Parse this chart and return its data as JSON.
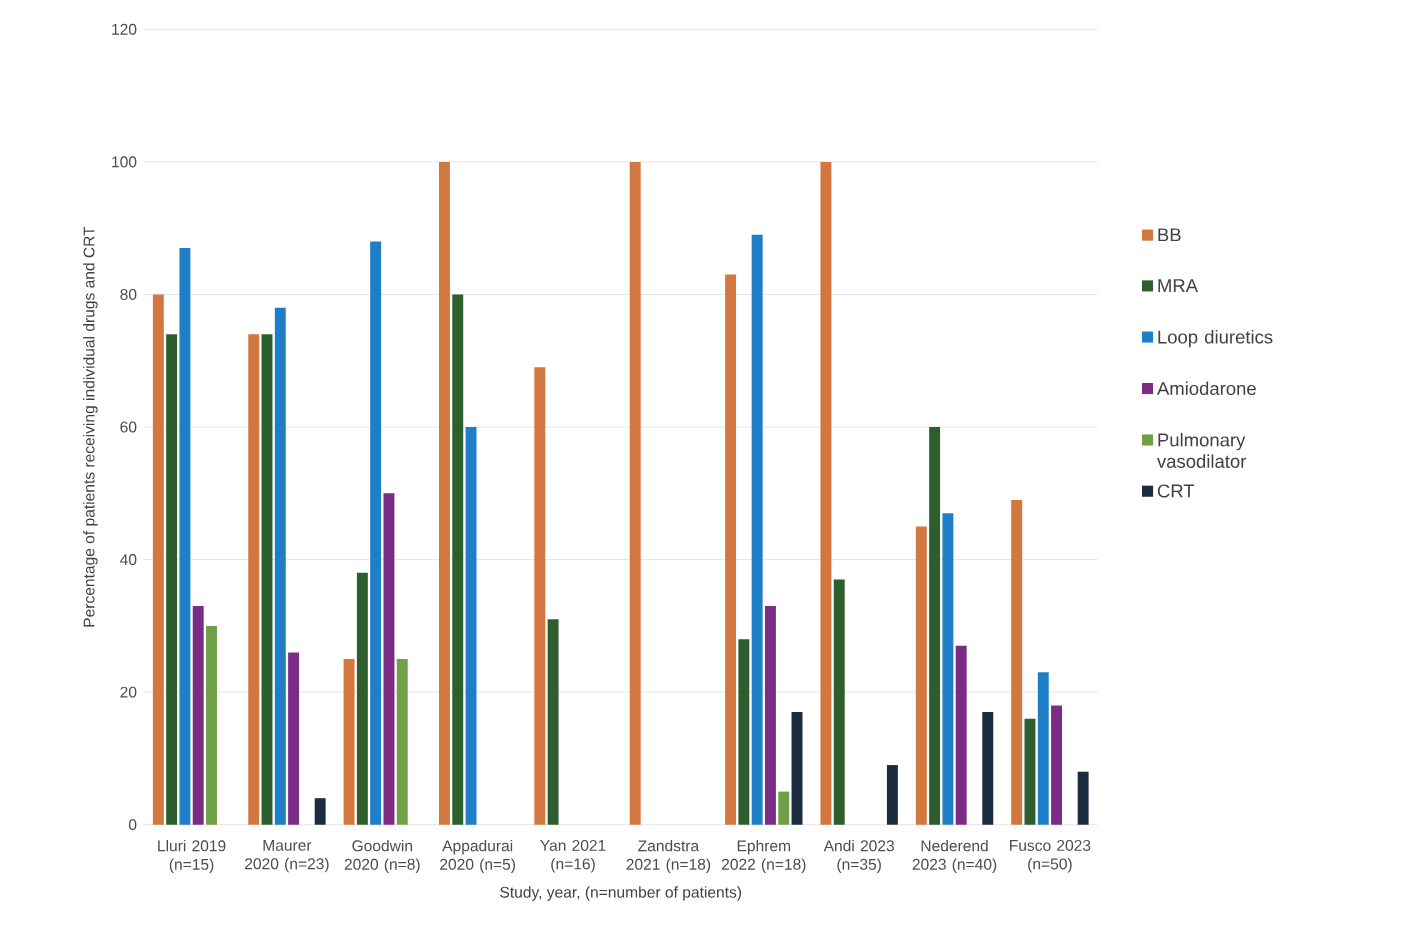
{
  "chart_data": {
    "type": "bar",
    "xlabel": "Study, year, (n=number of patients)",
    "ylabel": "Percentage of patients receiving individual drugs and CRT",
    "categories": [
      "Lluri 2019 (n=15)",
      "Maurer 2020 (n=23)",
      "Goodwin 2020 (n=8)",
      "Appadurai 2020 (n=5)",
      "Yan 2021 (n=16)",
      "Zandstra 2021 (n=18)",
      "Ephrem 2022 (n=18)",
      "Andi 2023 (n=35)",
      "Nederend 2023 (n=40)",
      "Fusco 2023 (n=50)"
    ],
    "series": [
      {
        "name": "BB",
        "color": "#d2773f",
        "values": [
          80,
          74,
          25,
          100,
          69,
          100,
          83,
          100,
          45,
          49
        ]
      },
      {
        "name": "MRA",
        "color": "#2e5e2e",
        "values": [
          74,
          74,
          38,
          80,
          31,
          null,
          28,
          37,
          60,
          16
        ]
      },
      {
        "name": "Loop diuretics",
        "color": "#1e7fc8",
        "values": [
          87,
          78,
          88,
          60,
          null,
          null,
          89,
          null,
          47,
          23
        ]
      },
      {
        "name": "Amiodarone",
        "color": "#7b2c84",
        "values": [
          33,
          26,
          50,
          null,
          null,
          null,
          33,
          null,
          27,
          18
        ]
      },
      {
        "name": "Pulmonary vasodilator",
        "color": "#6fa048",
        "values": [
          30,
          null,
          25,
          null,
          null,
          null,
          5,
          null,
          null,
          null
        ]
      },
      {
        "name": "CRT",
        "color": "#1b2b40",
        "values": [
          null,
          4,
          null,
          null,
          null,
          null,
          17,
          9,
          17,
          8
        ]
      }
    ],
    "ylim": [
      0,
      120
    ],
    "yticks": [
      0,
      20,
      40,
      60,
      80,
      100,
      120
    ],
    "grid": "y",
    "legend": "right"
  }
}
